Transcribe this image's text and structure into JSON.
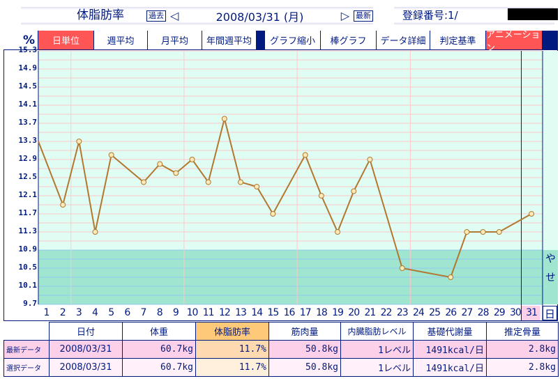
{
  "header": {
    "title": "体脂肪率",
    "prev_label": "過去",
    "prev_arrow": "◁",
    "date": "2008/03/31 (月)",
    "next_arrow": "▷",
    "latest_label": "最新",
    "registration": "登録番号:1/"
  },
  "toolbar": {
    "unit": "%",
    "buttons": [
      "日単位",
      "週平均",
      "月平均",
      "年間週平均"
    ],
    "buttons2": [
      "グラフ縮小",
      "棒グラフ",
      "データ詳細",
      "判定基準",
      "アニメーション"
    ],
    "active": "日単位"
  },
  "colors": {
    "line": "#b07830",
    "plot_bg": "#dffdf3",
    "thin_band": "#a0e5d0",
    "accent": "#ff5555",
    "navy": "#001a80"
  },
  "chart_data": {
    "type": "line",
    "ylim": [
      9.7,
      15.3
    ],
    "yticks": [
      "15.3",
      "14.9",
      "14.5",
      "14.1",
      "13.7",
      "13.3",
      "12.9",
      "12.5",
      "12.1",
      "11.7",
      "11.3",
      "10.9",
      "10.5",
      "10.1",
      "9.7"
    ],
    "x_labels": [
      "1",
      "2",
      "3",
      "4",
      "5",
      "6",
      "7",
      "8",
      "9",
      "10",
      "11",
      "12",
      "13",
      "14",
      "15",
      "16",
      "17",
      "18",
      "19",
      "20",
      "21",
      "22",
      "23",
      "24",
      "25",
      "26",
      "27",
      "28",
      "29",
      "30",
      "31"
    ],
    "x_unit": "日",
    "selected_day": 31,
    "band_label": "やせ",
    "band_max": 10.9,
    "entering_value": 13.3,
    "points": [
      [
        2,
        11.9
      ],
      [
        3,
        13.3
      ],
      [
        4,
        11.3
      ],
      [
        5,
        13.0
      ],
      [
        7,
        12.4
      ],
      [
        8,
        12.8
      ],
      [
        9,
        12.6
      ],
      [
        10,
        12.9
      ],
      [
        11,
        12.4
      ],
      [
        12,
        13.8
      ],
      [
        13,
        12.4
      ],
      [
        14,
        12.3
      ],
      [
        15,
        11.7
      ],
      [
        17,
        13.0
      ],
      [
        18,
        12.1
      ],
      [
        19,
        11.3
      ],
      [
        20,
        12.2
      ],
      [
        21,
        12.9
      ],
      [
        23,
        10.5
      ],
      [
        26,
        10.3
      ],
      [
        27,
        11.3
      ],
      [
        28,
        11.3
      ],
      [
        29,
        11.3
      ],
      [
        31,
        11.7
      ]
    ]
  },
  "table": {
    "headers": [
      "日付",
      "体重",
      "体脂肪率",
      "筋肉量",
      "内臓脂肪レベル",
      "基礎代謝量",
      "推定骨量"
    ],
    "rows": [
      {
        "label": "最新データ",
        "values": [
          "2008/03/31",
          "60.7kg",
          "11.7%",
          "50.8kg",
          "1レベル",
          "1491kcal/日",
          "2.8kg"
        ]
      },
      {
        "label": "選択データ",
        "values": [
          "2008/03/31",
          "60.7kg",
          "11.7%",
          "50.8kg",
          "1レベル",
          "1491kcal/日",
          "2.8kg"
        ]
      }
    ]
  }
}
